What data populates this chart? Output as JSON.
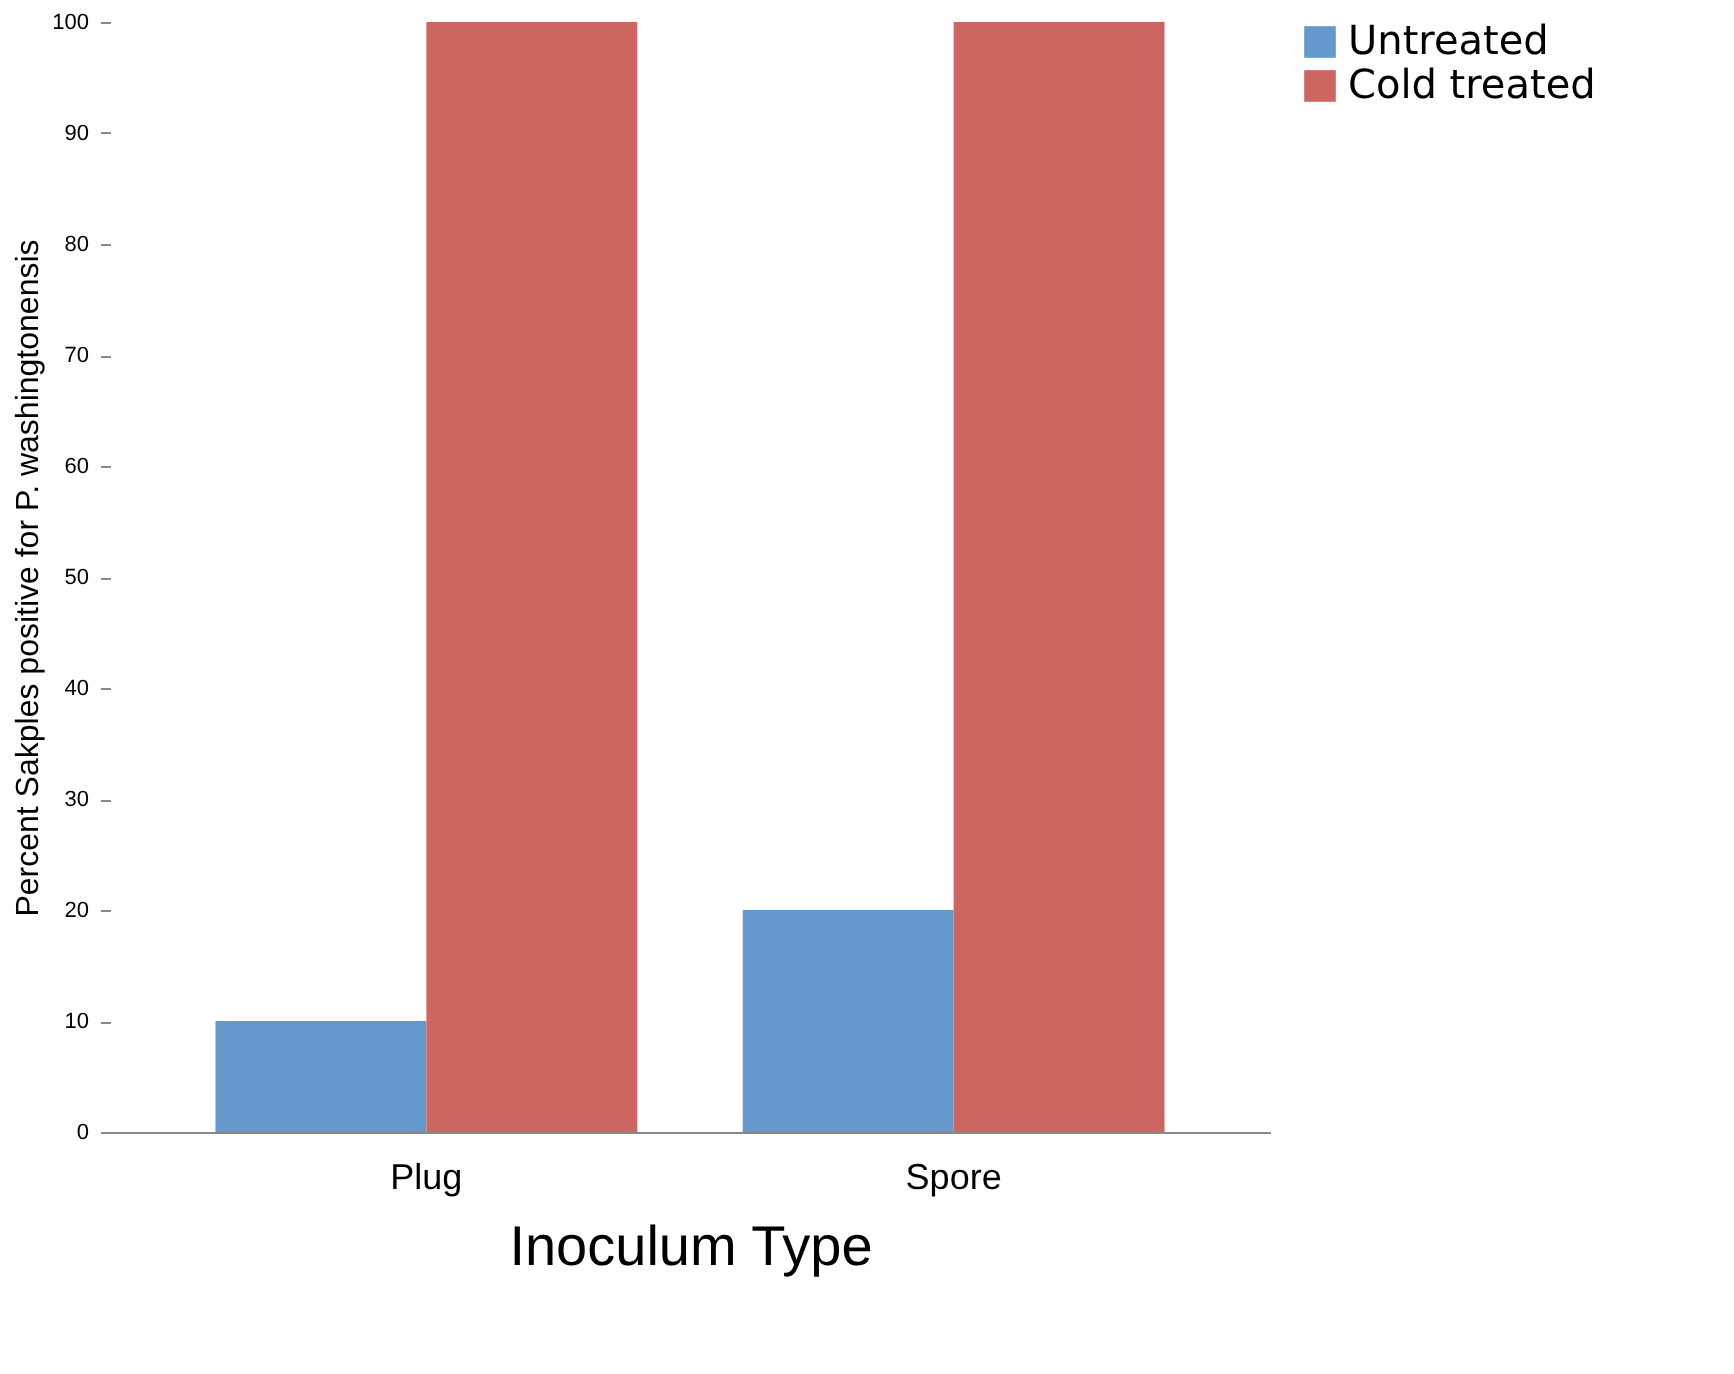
{
  "chart_data": {
    "type": "bar",
    "xlabel": "Inoculum Type",
    "ylabel": "Percent Sakples positive for P. washingtonensis",
    "categories": [
      "Plug",
      "Spore"
    ],
    "series": [
      {
        "name": "Untreated",
        "color": "#6598cd",
        "values": [
          10,
          20
        ]
      },
      {
        "name": "Cold treated",
        "color": "#cd6660",
        "values": [
          100,
          100
        ]
      }
    ],
    "ylim": [
      0,
      100
    ],
    "yticks": [
      0,
      10,
      20,
      30,
      40,
      50,
      60,
      70,
      80,
      90,
      100
    ],
    "grid": false,
    "legend": "right"
  }
}
